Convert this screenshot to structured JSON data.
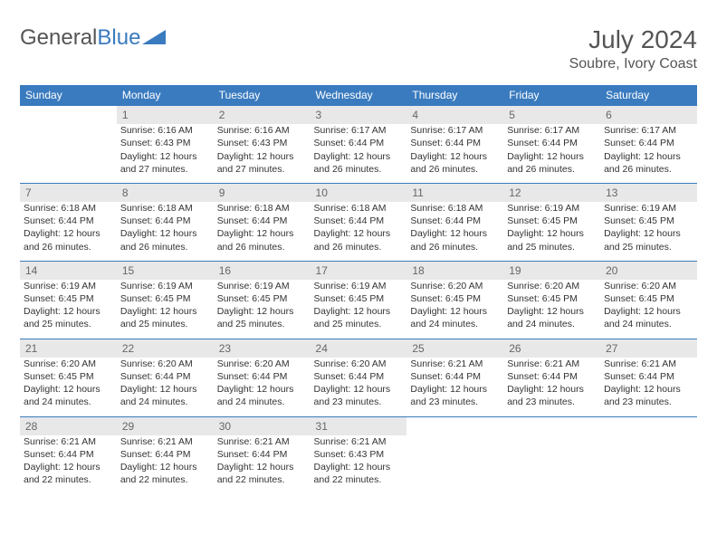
{
  "logo": {
    "part1": "General",
    "part2": "Blue"
  },
  "title": "July 2024",
  "location": "Soubre, Ivory Coast",
  "colors": {
    "header_bg": "#3a7bbf",
    "header_text": "#ffffff",
    "daynum_bg": "#e8e8e8",
    "daynum_text": "#666666",
    "page_bg": "#ffffff",
    "body_text": "#333333"
  },
  "weekdays": [
    "Sunday",
    "Monday",
    "Tuesday",
    "Wednesday",
    "Thursday",
    "Friday",
    "Saturday"
  ],
  "weeks": [
    {
      "nums": [
        "",
        "1",
        "2",
        "3",
        "4",
        "5",
        "6"
      ],
      "cells": [
        null,
        {
          "sunrise": "Sunrise: 6:16 AM",
          "sunset": "Sunset: 6:43 PM",
          "daylight": "Daylight: 12 hours and 27 minutes."
        },
        {
          "sunrise": "Sunrise: 6:16 AM",
          "sunset": "Sunset: 6:43 PM",
          "daylight": "Daylight: 12 hours and 27 minutes."
        },
        {
          "sunrise": "Sunrise: 6:17 AM",
          "sunset": "Sunset: 6:44 PM",
          "daylight": "Daylight: 12 hours and 26 minutes."
        },
        {
          "sunrise": "Sunrise: 6:17 AM",
          "sunset": "Sunset: 6:44 PM",
          "daylight": "Daylight: 12 hours and 26 minutes."
        },
        {
          "sunrise": "Sunrise: 6:17 AM",
          "sunset": "Sunset: 6:44 PM",
          "daylight": "Daylight: 12 hours and 26 minutes."
        },
        {
          "sunrise": "Sunrise: 6:17 AM",
          "sunset": "Sunset: 6:44 PM",
          "daylight": "Daylight: 12 hours and 26 minutes."
        }
      ]
    },
    {
      "nums": [
        "7",
        "8",
        "9",
        "10",
        "11",
        "12",
        "13"
      ],
      "cells": [
        {
          "sunrise": "Sunrise: 6:18 AM",
          "sunset": "Sunset: 6:44 PM",
          "daylight": "Daylight: 12 hours and 26 minutes."
        },
        {
          "sunrise": "Sunrise: 6:18 AM",
          "sunset": "Sunset: 6:44 PM",
          "daylight": "Daylight: 12 hours and 26 minutes."
        },
        {
          "sunrise": "Sunrise: 6:18 AM",
          "sunset": "Sunset: 6:44 PM",
          "daylight": "Daylight: 12 hours and 26 minutes."
        },
        {
          "sunrise": "Sunrise: 6:18 AM",
          "sunset": "Sunset: 6:44 PM",
          "daylight": "Daylight: 12 hours and 26 minutes."
        },
        {
          "sunrise": "Sunrise: 6:18 AM",
          "sunset": "Sunset: 6:44 PM",
          "daylight": "Daylight: 12 hours and 26 minutes."
        },
        {
          "sunrise": "Sunrise: 6:19 AM",
          "sunset": "Sunset: 6:45 PM",
          "daylight": "Daylight: 12 hours and 25 minutes."
        },
        {
          "sunrise": "Sunrise: 6:19 AM",
          "sunset": "Sunset: 6:45 PM",
          "daylight": "Daylight: 12 hours and 25 minutes."
        }
      ]
    },
    {
      "nums": [
        "14",
        "15",
        "16",
        "17",
        "18",
        "19",
        "20"
      ],
      "cells": [
        {
          "sunrise": "Sunrise: 6:19 AM",
          "sunset": "Sunset: 6:45 PM",
          "daylight": "Daylight: 12 hours and 25 minutes."
        },
        {
          "sunrise": "Sunrise: 6:19 AM",
          "sunset": "Sunset: 6:45 PM",
          "daylight": "Daylight: 12 hours and 25 minutes."
        },
        {
          "sunrise": "Sunrise: 6:19 AM",
          "sunset": "Sunset: 6:45 PM",
          "daylight": "Daylight: 12 hours and 25 minutes."
        },
        {
          "sunrise": "Sunrise: 6:19 AM",
          "sunset": "Sunset: 6:45 PM",
          "daylight": "Daylight: 12 hours and 25 minutes."
        },
        {
          "sunrise": "Sunrise: 6:20 AM",
          "sunset": "Sunset: 6:45 PM",
          "daylight": "Daylight: 12 hours and 24 minutes."
        },
        {
          "sunrise": "Sunrise: 6:20 AM",
          "sunset": "Sunset: 6:45 PM",
          "daylight": "Daylight: 12 hours and 24 minutes."
        },
        {
          "sunrise": "Sunrise: 6:20 AM",
          "sunset": "Sunset: 6:45 PM",
          "daylight": "Daylight: 12 hours and 24 minutes."
        }
      ]
    },
    {
      "nums": [
        "21",
        "22",
        "23",
        "24",
        "25",
        "26",
        "27"
      ],
      "cells": [
        {
          "sunrise": "Sunrise: 6:20 AM",
          "sunset": "Sunset: 6:45 PM",
          "daylight": "Daylight: 12 hours and 24 minutes."
        },
        {
          "sunrise": "Sunrise: 6:20 AM",
          "sunset": "Sunset: 6:44 PM",
          "daylight": "Daylight: 12 hours and 24 minutes."
        },
        {
          "sunrise": "Sunrise: 6:20 AM",
          "sunset": "Sunset: 6:44 PM",
          "daylight": "Daylight: 12 hours and 24 minutes."
        },
        {
          "sunrise": "Sunrise: 6:20 AM",
          "sunset": "Sunset: 6:44 PM",
          "daylight": "Daylight: 12 hours and 23 minutes."
        },
        {
          "sunrise": "Sunrise: 6:21 AM",
          "sunset": "Sunset: 6:44 PM",
          "daylight": "Daylight: 12 hours and 23 minutes."
        },
        {
          "sunrise": "Sunrise: 6:21 AM",
          "sunset": "Sunset: 6:44 PM",
          "daylight": "Daylight: 12 hours and 23 minutes."
        },
        {
          "sunrise": "Sunrise: 6:21 AM",
          "sunset": "Sunset: 6:44 PM",
          "daylight": "Daylight: 12 hours and 23 minutes."
        }
      ]
    },
    {
      "nums": [
        "28",
        "29",
        "30",
        "31",
        "",
        "",
        ""
      ],
      "cells": [
        {
          "sunrise": "Sunrise: 6:21 AM",
          "sunset": "Sunset: 6:44 PM",
          "daylight": "Daylight: 12 hours and 22 minutes."
        },
        {
          "sunrise": "Sunrise: 6:21 AM",
          "sunset": "Sunset: 6:44 PM",
          "daylight": "Daylight: 12 hours and 22 minutes."
        },
        {
          "sunrise": "Sunrise: 6:21 AM",
          "sunset": "Sunset: 6:44 PM",
          "daylight": "Daylight: 12 hours and 22 minutes."
        },
        {
          "sunrise": "Sunrise: 6:21 AM",
          "sunset": "Sunset: 6:43 PM",
          "daylight": "Daylight: 12 hours and 22 minutes."
        },
        null,
        null,
        null
      ]
    }
  ]
}
